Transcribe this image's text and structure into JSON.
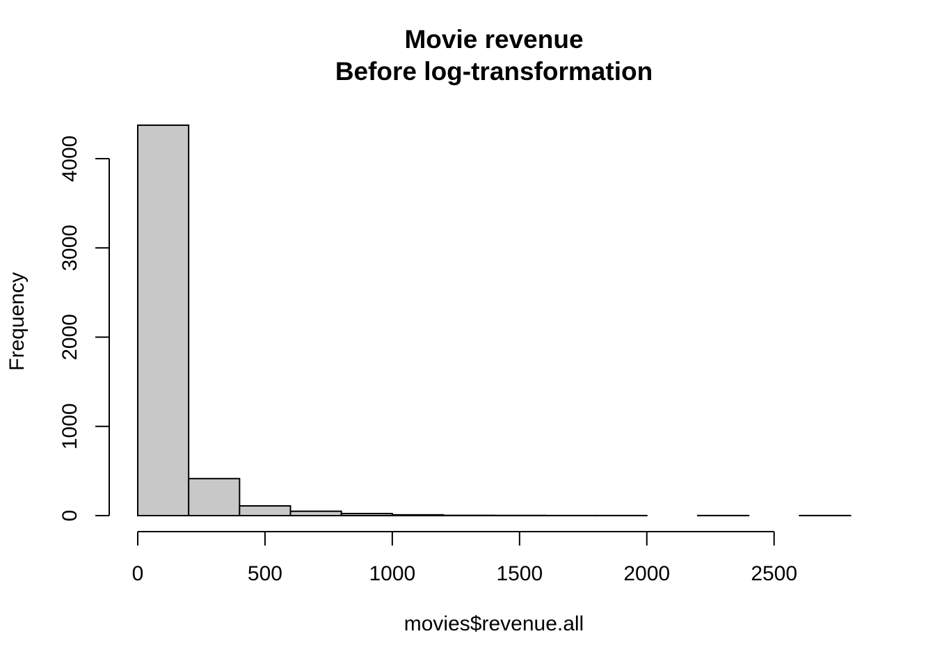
{
  "chart_data": {
    "type": "bar",
    "subtype": "histogram",
    "title": "Movie revenue",
    "subtitle": "Before log-transformation",
    "xlabel": "movies$revenue.all",
    "ylabel": "Frequency",
    "bin_width": 200,
    "categories": [
      "0-200",
      "200-400",
      "400-600",
      "600-800",
      "800-1000",
      "1000-1200",
      "1200-1400",
      "1400-1600",
      "1600-1800",
      "1800-2000",
      "2000-2200",
      "2200-2400",
      "2400-2600",
      "2600-2800"
    ],
    "bin_edges": [
      0,
      200,
      400,
      600,
      800,
      1000,
      1200,
      1400,
      1600,
      1800,
      2000,
      2200,
      2400,
      2600,
      2800
    ],
    "values": [
      4375,
      415,
      109,
      49,
      23,
      9,
      3,
      2,
      1,
      1,
      0,
      1,
      0,
      1
    ],
    "xlim": [
      0,
      2800
    ],
    "ylim": [
      0,
      4375
    ],
    "x_ticks": [
      0,
      500,
      1000,
      1500,
      2000,
      2500
    ],
    "y_ticks": [
      0,
      1000,
      2000,
      3000,
      4000
    ],
    "grid": false,
    "legend": null,
    "bar_fill": "#c8c8c8",
    "bar_stroke": "#000000"
  },
  "labels": {
    "title": "Movie revenue",
    "subtitle": "Before log-transformation",
    "xlabel": "movies$revenue.all",
    "ylabel": "Frequency"
  }
}
